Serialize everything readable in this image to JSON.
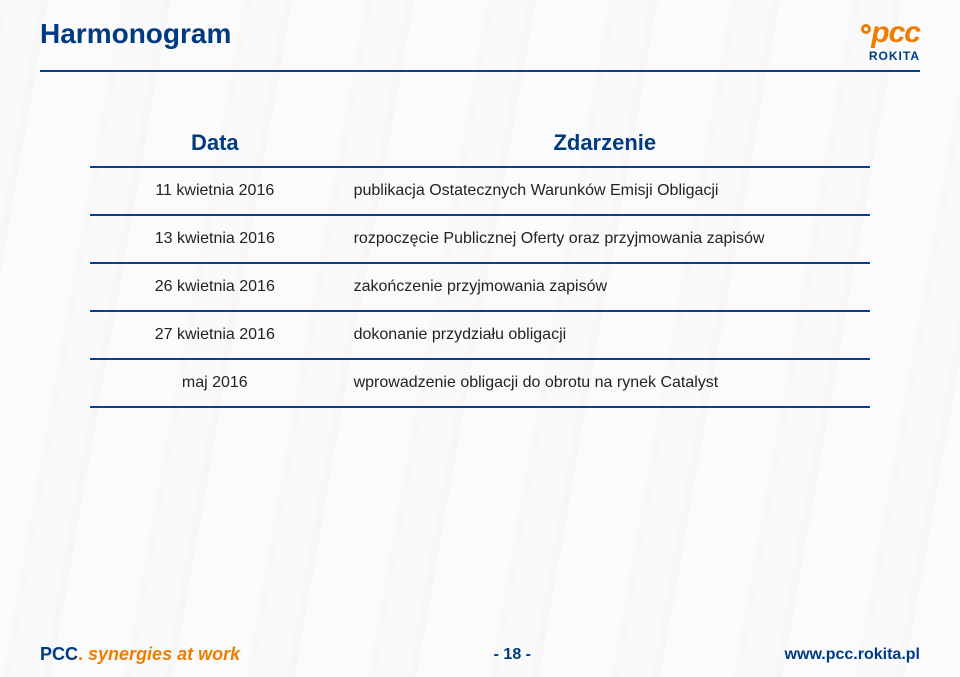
{
  "header": {
    "title": "Harmonogram",
    "logo": {
      "brand": "pcc",
      "sub": "ROKITA"
    }
  },
  "table": {
    "type": "table",
    "columns": [
      "Data",
      "Zdarzenie"
    ],
    "column_widths": [
      "32%",
      "68%"
    ],
    "header_color": "#003a82",
    "header_fontsize": 22,
    "row_border_color": "#0a3f8a",
    "row_border_width": 2,
    "cell_fontsize": 16,
    "cell_color": "#222222",
    "rows": [
      {
        "date": "11 kwietnia 2016",
        "event": "publikacja Ostatecznych Warunków Emisji Obligacji"
      },
      {
        "date": "13 kwietnia 2016",
        "event": "rozpoczęcie Publicznej Oferty oraz przyjmowania zapisów"
      },
      {
        "date": "26 kwietnia 2016",
        "event": "zakończenie przyjmowania zapisów"
      },
      {
        "date": "27 kwietnia 2016",
        "event": "dokonanie przydziału obligacji"
      },
      {
        "date": "maj  2016",
        "event": "wprowadzenie obligacji do obrotu na rynek Catalyst"
      }
    ]
  },
  "footer": {
    "tagline_pcc": "PCC",
    "tagline_dot": ".",
    "tagline_rest": " synergies at work",
    "pagenum": "- 18 -",
    "url": "www.pcc.rokita.pl"
  },
  "colors": {
    "brand_blue": "#003a82",
    "brand_orange": "#f07c00",
    "rule": "#0a3f8a",
    "background": "#ffffff"
  }
}
